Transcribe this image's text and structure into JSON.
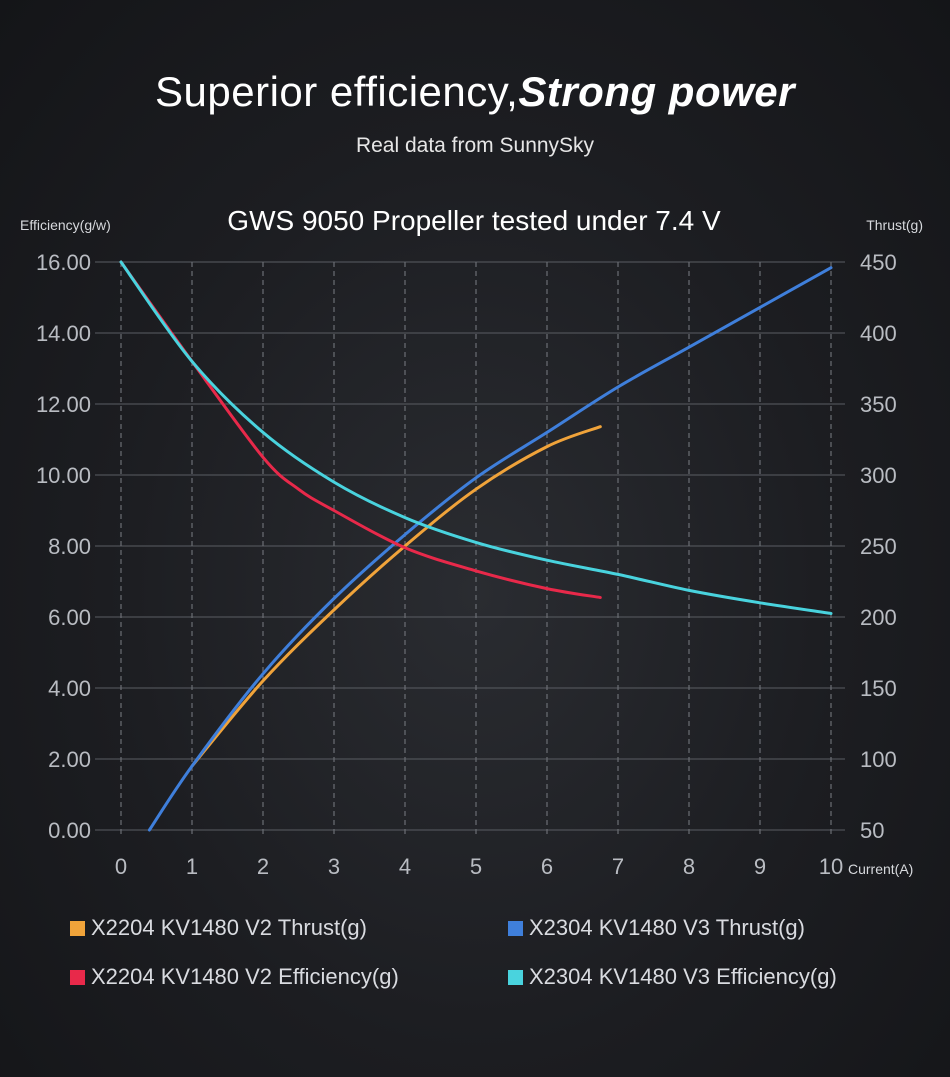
{
  "header": {
    "title_light": "Superior efficiency,",
    "title_bold": "Strong power",
    "subtitle": "Real data from SunnySky"
  },
  "chart_data": {
    "type": "line",
    "title": "GWS 9050 Propeller tested under 7.4 V",
    "xlabel": "Current(A)",
    "ylabel_left": "Efficiency(g/w)",
    "ylabel_right": "Thrust(g)",
    "xlim": [
      0,
      10
    ],
    "ylim_left": [
      0,
      16
    ],
    "ylim_right": [
      50,
      450
    ],
    "x_ticks": [
      "0",
      "1",
      "2",
      "3",
      "4",
      "5",
      "6",
      "7",
      "8",
      "9",
      "10"
    ],
    "y_left_ticks": [
      "0.00",
      "2.00",
      "4.00",
      "6.00",
      "8.00",
      "10.00",
      "12.00",
      "14.00",
      "16.00"
    ],
    "y_right_ticks": [
      "50",
      "100",
      "150",
      "200",
      "250",
      "300",
      "350",
      "400",
      "450"
    ],
    "grid": true,
    "legend_position": "bottom",
    "series": [
      {
        "name": "X2204 KV1480 V2 Thrust(g)",
        "axis": "right",
        "color": "#f0a33a",
        "x": [
          1.0,
          2.0,
          3.0,
          4.0,
          5.0,
          6.0,
          6.75
        ],
        "y": [
          95,
          155,
          205,
          250,
          290,
          320,
          334
        ]
      },
      {
        "name": "X2304 KV1480 V3 Thrust(g)",
        "axis": "right",
        "color": "#3f7fdb",
        "x": [
          0.4,
          1.0,
          2.0,
          3.0,
          4.0,
          5.0,
          6.0,
          7.0,
          8.0,
          9.0,
          10.0
        ],
        "y": [
          50,
          95,
          160,
          213,
          258,
          298,
          330,
          362,
          390,
          418,
          446
        ]
      },
      {
        "name": "X2204 KV1480 V2 Efficiency(g)",
        "axis": "left",
        "color": "#e8294a",
        "x": [
          0.0,
          1.0,
          2.0,
          2.5,
          3.0,
          4.0,
          5.0,
          6.0,
          6.75
        ],
        "y": [
          16.0,
          13.2,
          10.5,
          9.6,
          9.0,
          7.95,
          7.3,
          6.8,
          6.55
        ]
      },
      {
        "name": "X2304 KV1480 V3 Efficiency(g)",
        "axis": "left",
        "color": "#49d3de",
        "x": [
          0.0,
          1.0,
          2.0,
          3.0,
          4.0,
          5.0,
          6.0,
          7.0,
          8.0,
          9.0,
          10.0
        ],
        "y": [
          16.0,
          13.2,
          11.2,
          9.8,
          8.8,
          8.1,
          7.6,
          7.2,
          6.75,
          6.4,
          6.1
        ]
      }
    ]
  }
}
